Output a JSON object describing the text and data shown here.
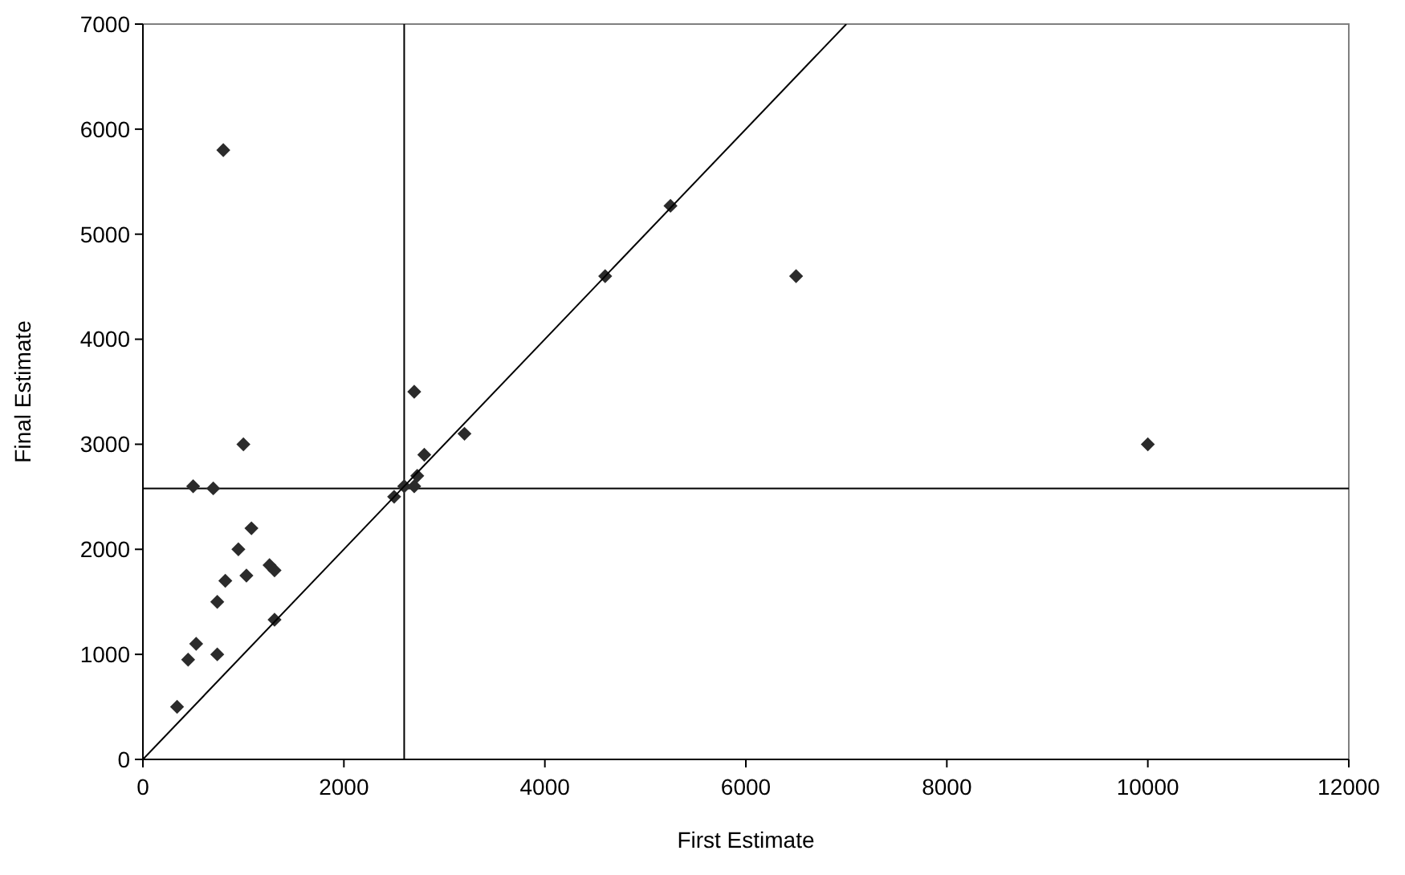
{
  "chart_data": {
    "type": "scatter",
    "xlabel": "First Estimate",
    "ylabel": "Final Estimate",
    "xlim": [
      0,
      12000
    ],
    "ylim": [
      0,
      7000
    ],
    "xticks": [
      0,
      2000,
      4000,
      6000,
      8000,
      10000,
      12000
    ],
    "yticks": [
      0,
      1000,
      2000,
      3000,
      4000,
      5000,
      6000,
      7000
    ],
    "grid": false,
    "series": [
      {
        "marker": "diamond",
        "color": "#2b2b2b",
        "x": [
          340,
          450,
          530,
          740,
          740,
          820,
          1030,
          950,
          1080,
          1260,
          1310,
          1310,
          500,
          700,
          2500,
          2600,
          2700,
          2730,
          2800,
          3200,
          2700,
          800,
          1000,
          4600,
          5250,
          6500,
          10000
        ],
        "values": [
          500,
          950,
          1100,
          1000,
          1500,
          1700,
          1750,
          2000,
          2200,
          1850,
          1800,
          1330,
          2600,
          2580,
          2500,
          2600,
          2600,
          2700,
          2900,
          3100,
          3500,
          5800,
          3000,
          4600,
          5270,
          4600,
          3000
        ]
      },
      {
        "type": "line",
        "marker": "none",
        "line_style": "solid",
        "color": "#000000",
        "x": [
          0,
          7000
        ],
        "values": [
          0,
          7000
        ]
      }
    ],
    "ref_lines": [
      {
        "axis": "x",
        "value": 2600,
        "color": "#000000"
      },
      {
        "axis": "y",
        "value": 2580,
        "color": "#000000"
      }
    ]
  }
}
